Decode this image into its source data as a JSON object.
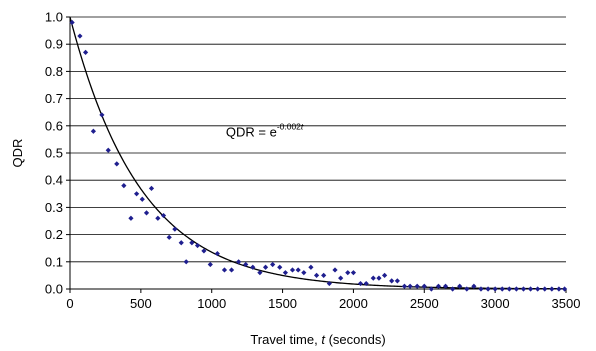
{
  "chart_data": {
    "type": "scatter",
    "xlabel": {
      "prefix": "Travel time, ",
      "variable": "t",
      "suffix": " (seconds)"
    },
    "ylabel": "QDR",
    "xlim": [
      0,
      3500
    ],
    "ylim": [
      0,
      1.0
    ],
    "xticks": [
      "0",
      "500",
      "1000",
      "1500",
      "2000",
      "2500",
      "3000",
      "3500"
    ],
    "yticks": [
      "0.0",
      "0.1",
      "0.2",
      "0.3",
      "0.4",
      "0.5",
      "0.6",
      "0.7",
      "0.8",
      "0.9",
      "1.0"
    ],
    "grid": "horizontal",
    "marker_color": "#1f1f8f",
    "curve_color": "#000000",
    "annotation": {
      "base": "QDR = e",
      "exponent_prefix": "-0.002",
      "exponent_var": "t",
      "x": 1100,
      "y": 0.56
    },
    "series": [
      {
        "points": [
          [
            15,
            0.98
          ],
          [
            70,
            0.93
          ],
          [
            110,
            0.87
          ],
          [
            165,
            0.58
          ],
          [
            225,
            0.64
          ],
          [
            270,
            0.51
          ],
          [
            330,
            0.46
          ],
          [
            380,
            0.38
          ],
          [
            430,
            0.26
          ],
          [
            470,
            0.35
          ],
          [
            510,
            0.33
          ],
          [
            540,
            0.28
          ],
          [
            575,
            0.37
          ],
          [
            620,
            0.26
          ],
          [
            660,
            0.27
          ],
          [
            700,
            0.19
          ],
          [
            740,
            0.22
          ],
          [
            785,
            0.17
          ],
          [
            820,
            0.1
          ],
          [
            860,
            0.17
          ],
          [
            900,
            0.16
          ],
          [
            945,
            0.14
          ],
          [
            990,
            0.09
          ],
          [
            1040,
            0.13
          ],
          [
            1090,
            0.07
          ],
          [
            1140,
            0.07
          ],
          [
            1190,
            0.1
          ],
          [
            1240,
            0.09
          ],
          [
            1290,
            0.08
          ],
          [
            1340,
            0.06
          ],
          [
            1380,
            0.08
          ],
          [
            1430,
            0.09
          ],
          [
            1480,
            0.08
          ],
          [
            1520,
            0.06
          ],
          [
            1570,
            0.07
          ],
          [
            1610,
            0.07
          ],
          [
            1650,
            0.06
          ],
          [
            1700,
            0.08
          ],
          [
            1740,
            0.05
          ],
          [
            1790,
            0.05
          ],
          [
            1830,
            0.02
          ],
          [
            1870,
            0.07
          ],
          [
            1910,
            0.04
          ],
          [
            1960,
            0.06
          ],
          [
            2000,
            0.06
          ],
          [
            2050,
            0.02
          ],
          [
            2090,
            0.02
          ],
          [
            2140,
            0.04
          ],
          [
            2180,
            0.04
          ],
          [
            2220,
            0.05
          ],
          [
            2270,
            0.03
          ],
          [
            2310,
            0.03
          ],
          [
            2360,
            0.01
          ],
          [
            2400,
            0.01
          ],
          [
            2450,
            0.01
          ],
          [
            2500,
            0.01
          ],
          [
            2550,
            0.0
          ],
          [
            2600,
            0.01
          ],
          [
            2650,
            0.01
          ],
          [
            2700,
            0.0
          ],
          [
            2750,
            0.01
          ],
          [
            2800,
            0.0
          ],
          [
            2850,
            0.01
          ],
          [
            2900,
            0.0
          ],
          [
            2950,
            0.0
          ],
          [
            3000,
            0.0
          ],
          [
            3050,
            0.0
          ],
          [
            3100,
            0.0
          ],
          [
            3150,
            0.0
          ],
          [
            3200,
            0.0
          ],
          [
            3250,
            0.0
          ],
          [
            3300,
            0.0
          ],
          [
            3350,
            0.0
          ],
          [
            3400,
            0.0
          ],
          [
            3450,
            0.0
          ],
          [
            3490,
            0.0
          ]
        ]
      }
    ],
    "fit": {
      "type": "exponential",
      "coefficient": -0.002
    }
  }
}
